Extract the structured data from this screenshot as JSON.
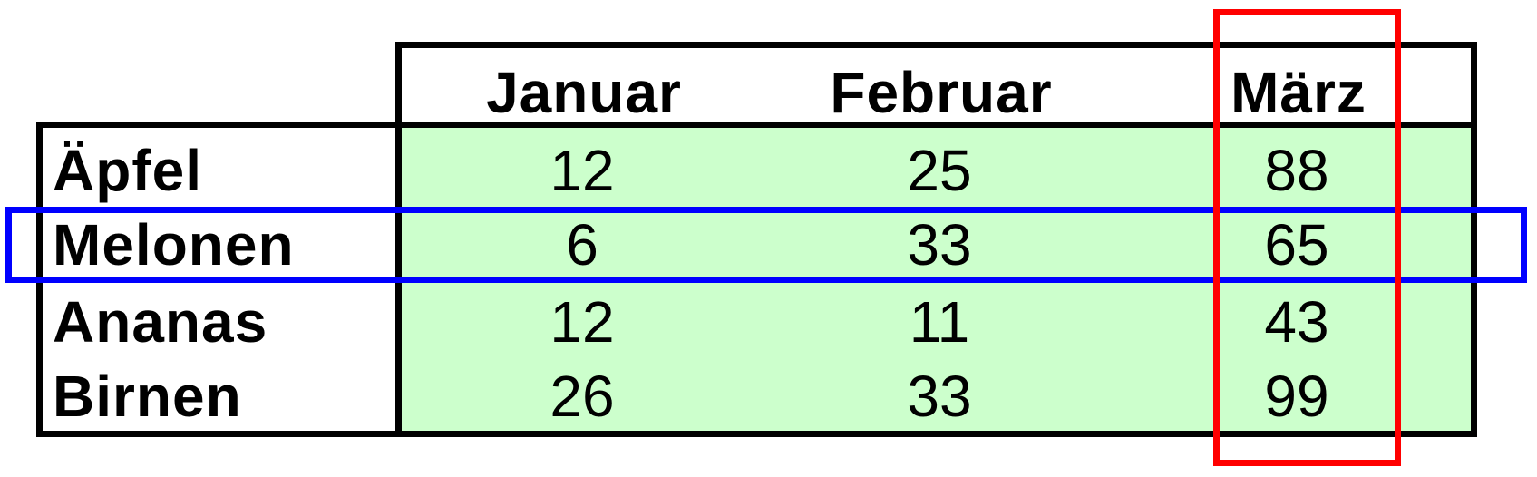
{
  "table": {
    "columns": [
      "Januar",
      "Februar",
      "März"
    ],
    "rows": [
      {
        "label": "Äpfel",
        "values": [
          "12",
          "25",
          "88"
        ]
      },
      {
        "label": "Melonen",
        "values": [
          "6",
          "33",
          "65"
        ]
      },
      {
        "label": "Ananas",
        "values": [
          "12",
          "11",
          "43"
        ]
      },
      {
        "label": "Birnen",
        "values": [
          "26",
          "33",
          "99"
        ]
      }
    ]
  },
  "highlights": {
    "row": {
      "target": "Melonen",
      "color": "#0000ff"
    },
    "column": {
      "target": "März",
      "color": "#ff0000"
    }
  },
  "colors": {
    "cell_background": "#ccffcc",
    "border": "#000000"
  }
}
